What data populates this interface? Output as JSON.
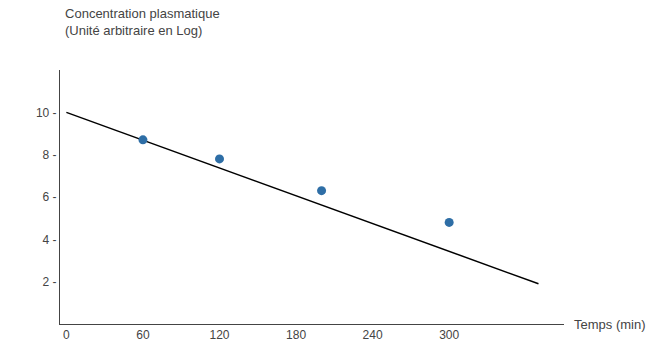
{
  "chart_data": {
    "type": "scatter",
    "title": "Concentration plasmatique",
    "subtitle": "(Unité arbitraire en Log)",
    "xlabel": "Temps (min)",
    "series": [
      {
        "type": "line",
        "color": "#000000",
        "x": [
          0,
          370
        ],
        "values": [
          10.0,
          1.9
        ]
      },
      {
        "type": "scatter",
        "color": "#2e6ea6",
        "x": [
          60,
          120,
          200,
          300
        ],
        "values": [
          8.7,
          7.8,
          6.3,
          4.8
        ]
      }
    ],
    "xlim": [
      -5,
      390
    ],
    "ylim": [
      0,
      12
    ],
    "xticks": [
      0,
      60,
      120,
      180,
      240,
      300
    ],
    "yticks": [
      {
        "value": 2,
        "label": "2 -"
      },
      {
        "value": 4,
        "label": "4 -"
      },
      {
        "value": 6,
        "label": "6 -"
      },
      {
        "value": 8,
        "label": "8 -"
      },
      {
        "value": 10,
        "label": "10 -"
      }
    ],
    "grid": false
  }
}
